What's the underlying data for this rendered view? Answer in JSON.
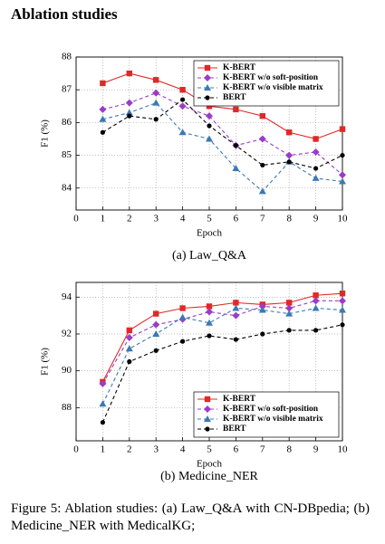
{
  "heading": "Ablation studies",
  "caption": "Figure 5: Ablation studies: (a) Law_Q&A with CN-DBpedia; (b) Medicine_NER with MedicalKG;",
  "chart_data": [
    {
      "type": "line",
      "title": "(a) Law_Q&A",
      "xlabel": "Epoch",
      "ylabel": "F1 (%)",
      "x": [
        1,
        2,
        3,
        4,
        5,
        6,
        7,
        8,
        9,
        10
      ],
      "xlim": [
        0,
        10
      ],
      "xticks": [
        0,
        1,
        2,
        3,
        4,
        5,
        6,
        7,
        8,
        9,
        10
      ],
      "ylim": [
        83.33,
        88
      ],
      "yticks": [
        84,
        85,
        86,
        87,
        88
      ],
      "grid": true,
      "legend": "top-right",
      "series": [
        {
          "name": "K-BERT",
          "color": "#e02828",
          "marker": "square",
          "linestyle": "solid",
          "values": [
            87.2,
            87.5,
            87.3,
            87.0,
            86.5,
            86.4,
            86.2,
            85.7,
            85.5,
            85.8
          ]
        },
        {
          "name": "K-BERT w/o soft-position",
          "color": "#9a3cc8",
          "marker": "diamond",
          "linestyle": "dashed",
          "values": [
            86.4,
            86.6,
            86.9,
            86.5,
            86.2,
            85.3,
            85.5,
            85.0,
            85.1,
            84.4
          ]
        },
        {
          "name": "K-BERT w/o visible matrix",
          "color": "#3c78b4",
          "marker": "triangle",
          "linestyle": "dashed",
          "values": [
            86.1,
            86.3,
            86.6,
            85.7,
            85.5,
            84.6,
            83.9,
            84.8,
            84.3,
            84.2
          ]
        },
        {
          "name": "BERT",
          "color": "#000000",
          "marker": "circle",
          "linestyle": "dashed",
          "values": [
            85.7,
            86.2,
            86.1,
            86.7,
            85.9,
            85.3,
            84.7,
            84.8,
            84.6,
            85.0
          ]
        }
      ]
    },
    {
      "type": "line",
      "title": "(b) Medicine_NER",
      "xlabel": "Epoch",
      "ylabel": "F1 (%)",
      "x": [
        1,
        2,
        3,
        4,
        5,
        6,
        7,
        8,
        9,
        10
      ],
      "xlim": [
        0,
        10
      ],
      "xticks": [
        0,
        1,
        2,
        3,
        4,
        5,
        6,
        7,
        8,
        9,
        10
      ],
      "ylim": [
        86.2,
        94.8
      ],
      "yticks": [
        88,
        90,
        92,
        94
      ],
      "grid": true,
      "legend": "bottom-right",
      "series": [
        {
          "name": "K-BERT",
          "color": "#e02828",
          "marker": "square",
          "linestyle": "solid",
          "values": [
            89.4,
            92.2,
            93.1,
            93.4,
            93.5,
            93.7,
            93.6,
            93.7,
            94.1,
            94.2
          ]
        },
        {
          "name": "K-BERT w/o soft-position",
          "color": "#9a3cc8",
          "marker": "diamond",
          "linestyle": "dashed",
          "values": [
            89.3,
            91.8,
            92.5,
            92.8,
            93.2,
            93.0,
            93.5,
            93.4,
            93.8,
            93.8
          ]
        },
        {
          "name": "K-BERT w/o visible matrix",
          "color": "#3c78b4",
          "marker": "triangle",
          "linestyle": "dashed",
          "values": [
            88.2,
            91.2,
            92.0,
            92.9,
            92.6,
            93.4,
            93.3,
            93.1,
            93.4,
            93.3
          ]
        },
        {
          "name": "BERT",
          "color": "#000000",
          "marker": "circle",
          "linestyle": "dashed",
          "values": [
            87.2,
            90.5,
            91.1,
            91.6,
            91.9,
            91.7,
            92.0,
            92.2,
            92.2,
            92.5
          ]
        }
      ]
    }
  ]
}
